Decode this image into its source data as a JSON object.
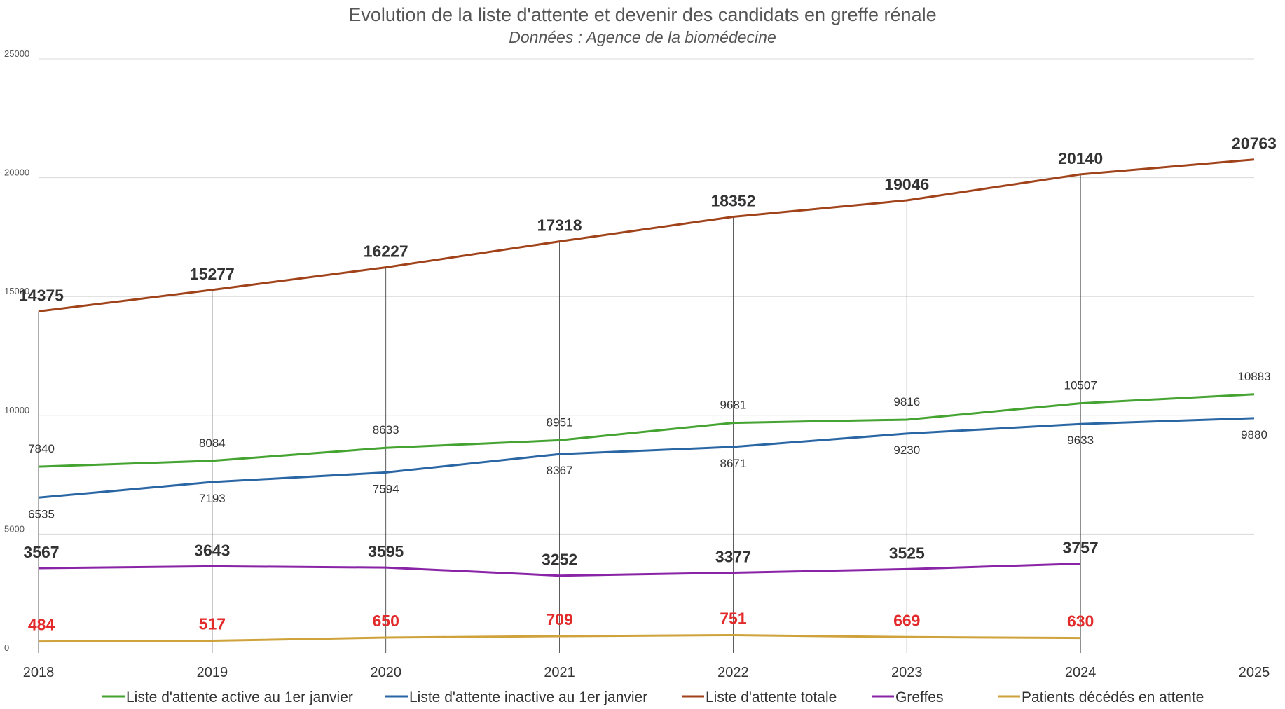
{
  "title": "Evolution de la liste d'attente et devenir des candidats en greffe rénale",
  "subtitle": "Données : Agence de la biomédecine",
  "chart_data": {
    "type": "line",
    "title": "Evolution de la liste d'attente et devenir des candidats en greffe rénale",
    "subtitle": "Données : Agence de la biomédecine",
    "xlabel": "",
    "ylabel": "",
    "ylim": [
      0,
      25000
    ],
    "yticks": [
      0,
      5000,
      10000,
      15000,
      20000,
      25000
    ],
    "categories": [
      "2018",
      "2019",
      "2020",
      "2021",
      "2022",
      "2023",
      "2024",
      "2025"
    ],
    "grid": "horizontal",
    "legend_position": "bottom",
    "series": [
      {
        "name": "Liste d'attente active au 1er janvier",
        "color": "#44a331",
        "label_style": "small-above",
        "values": [
          7840,
          8084,
          8633,
          8951,
          9681,
          9816,
          10507,
          10883
        ]
      },
      {
        "name": "Liste d'attente inactive au 1er janvier",
        "color": "#2a66a4",
        "label_style": "small-below",
        "values": [
          6535,
          7193,
          7594,
          8367,
          8671,
          9230,
          9633,
          9880
        ]
      },
      {
        "name": "Liste d'attente totale",
        "color": "#a0421a",
        "label_style": "big-above",
        "values": [
          14375,
          15277,
          16227,
          17318,
          18352,
          19046,
          20140,
          20763
        ]
      },
      {
        "name": "Greffes",
        "color": "#8a24a6",
        "label_style": "big-above",
        "values": [
          3567,
          3643,
          3595,
          3252,
          3377,
          3525,
          3757,
          null
        ]
      },
      {
        "name": "Patients décédés en attente",
        "color": "#cfa23c",
        "label_style": "red-above",
        "values": [
          484,
          517,
          650,
          709,
          751,
          669,
          630,
          null
        ]
      }
    ]
  }
}
